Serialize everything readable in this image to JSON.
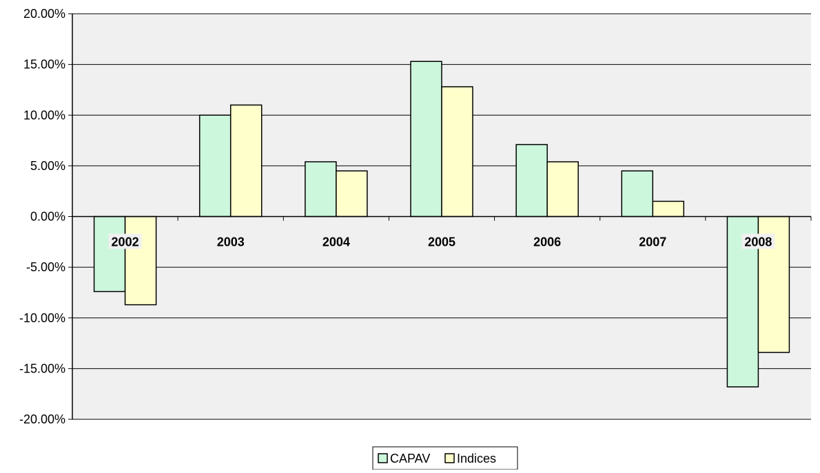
{
  "chart_data": {
    "type": "bar",
    "categories": [
      "2002",
      "2003",
      "2004",
      "2005",
      "2006",
      "2007",
      "2008"
    ],
    "series": [
      {
        "name": "CAPAV",
        "values": [
          -7.4,
          10.0,
          5.4,
          15.3,
          7.1,
          4.5,
          -16.8
        ],
        "color": "#ccf7dc"
      },
      {
        "name": "Indices",
        "values": [
          -8.7,
          11.0,
          4.5,
          12.8,
          5.4,
          1.5,
          -13.4
        ],
        "color": "#ffffcc"
      }
    ],
    "ylim": [
      -20,
      20
    ],
    "yticks": [
      20,
      15,
      10,
      5,
      0,
      -5,
      -10,
      -15,
      -20
    ],
    "ytick_labels": [
      "20.00%",
      "15.00%",
      "10.00%",
      "5.00%",
      "0.00%",
      "-5.00%",
      "-10.00%",
      "-15.00%",
      "-20.00%"
    ],
    "grid": true,
    "plot_background": "#f0f0f0",
    "bar_outline": "#000000",
    "legend_position": "bottom-center",
    "title": "",
    "xlabel": "",
    "ylabel": ""
  }
}
